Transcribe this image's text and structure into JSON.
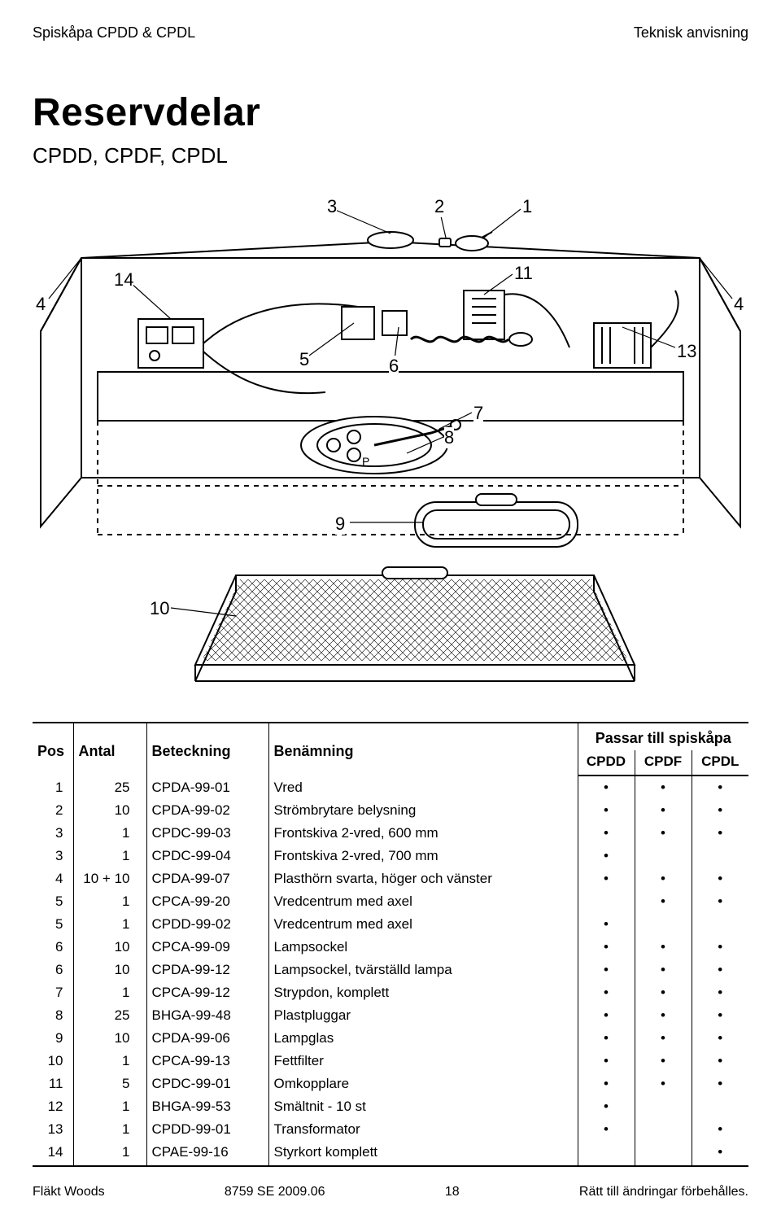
{
  "header": {
    "left": "Spiskåpa CPDD & CPDL",
    "right": "Teknisk anvisning"
  },
  "title": "Reservdelar",
  "subtitle": "CPDD, CPDF, CPDL",
  "callouts": [
    "1",
    "2",
    "3",
    "4",
    "4",
    "5",
    "6",
    "7",
    "8",
    "9",
    "10",
    "11",
    "13",
    "14"
  ],
  "table": {
    "headers": {
      "pos": "Pos",
      "antal": "Antal",
      "beteckning": "Beteckning",
      "benamning": "Benämning",
      "group": "Passar till spiskåpa",
      "cpdd": "CPDD",
      "cpdf": "CPDF",
      "cpdl": "CPDL"
    },
    "rows": [
      {
        "pos": "1",
        "antal": "25",
        "code": "CPDA-99-01",
        "desc": "Vred",
        "cpdd": "•",
        "cpdf": "•",
        "cpdl": "•"
      },
      {
        "pos": "2",
        "antal": "10",
        "code": "CPDA-99-02",
        "desc": "Strömbrytare belysning",
        "cpdd": "•",
        "cpdf": "•",
        "cpdl": "•"
      },
      {
        "pos": "3",
        "antal": "1",
        "code": "CPDC-99-03",
        "desc": "Frontskiva 2-vred, 600 mm",
        "cpdd": "•",
        "cpdf": "•",
        "cpdl": "•"
      },
      {
        "pos": "3",
        "antal": "1",
        "code": "CPDC-99-04",
        "desc": "Frontskiva 2-vred, 700 mm",
        "cpdd": "•",
        "cpdf": "",
        "cpdl": ""
      },
      {
        "pos": "4",
        "antal": "10 + 10",
        "code": "CPDA-99-07",
        "desc": "Plasthörn svarta, höger och vänster",
        "cpdd": "•",
        "cpdf": "•",
        "cpdl": "•"
      },
      {
        "pos": "5",
        "antal": "1",
        "code": "CPCA-99-20",
        "desc": "Vredcentrum med axel",
        "cpdd": "",
        "cpdf": "•",
        "cpdl": "•"
      },
      {
        "pos": "5",
        "antal": "1",
        "code": "CPDD-99-02",
        "desc": "Vredcentrum med axel",
        "cpdd": "•",
        "cpdf": "",
        "cpdl": ""
      },
      {
        "pos": "6",
        "antal": "10",
        "code": "CPCA-99-09",
        "desc": "Lampsockel",
        "cpdd": "•",
        "cpdf": "•",
        "cpdl": "•"
      },
      {
        "pos": "6",
        "antal": "10",
        "code": "CPDA-99-12",
        "desc": "Lampsockel, tvärställd lampa",
        "cpdd": "•",
        "cpdf": "•",
        "cpdl": "•"
      },
      {
        "pos": "7",
        "antal": "1",
        "code": "CPCA-99-12",
        "desc": "Strypdon, komplett",
        "cpdd": "•",
        "cpdf": "•",
        "cpdl": "•"
      },
      {
        "pos": "8",
        "antal": "25",
        "code": "BHGA-99-48",
        "desc": "Plastpluggar",
        "cpdd": "•",
        "cpdf": "•",
        "cpdl": "•"
      },
      {
        "pos": "9",
        "antal": "10",
        "code": "CPDA-99-06",
        "desc": "Lampglas",
        "cpdd": "•",
        "cpdf": "•",
        "cpdl": "•"
      },
      {
        "pos": "10",
        "antal": "1",
        "code": "CPCA-99-13",
        "desc": "Fettfilter",
        "cpdd": "•",
        "cpdf": "•",
        "cpdl": "•"
      },
      {
        "pos": "11",
        "antal": "5",
        "code": "CPDC-99-01",
        "desc": "Omkopplare",
        "cpdd": "•",
        "cpdf": "•",
        "cpdl": "•"
      },
      {
        "pos": "12",
        "antal": "1",
        "code": "BHGA-99-53",
        "desc": "Smältnit - 10 st",
        "cpdd": "•",
        "cpdf": "",
        "cpdl": ""
      },
      {
        "pos": "13",
        "antal": "1",
        "code": "CPDD-99-01",
        "desc": "Transformator",
        "cpdd": "•",
        "cpdf": "",
        "cpdl": "•"
      },
      {
        "pos": "14",
        "antal": "1",
        "code": "CPAE-99-16",
        "desc": "Styrkort komplett",
        "cpdd": "",
        "cpdf": "",
        "cpdl": "•"
      }
    ]
  },
  "footer": {
    "left": "Fläkt Woods",
    "center_code": "8759  SE  2009.06",
    "center_page": "18",
    "right": "Rätt till ändringar förbehålles."
  },
  "colors": {
    "text": "#000000",
    "bg": "#ffffff",
    "rule": "#000000"
  }
}
